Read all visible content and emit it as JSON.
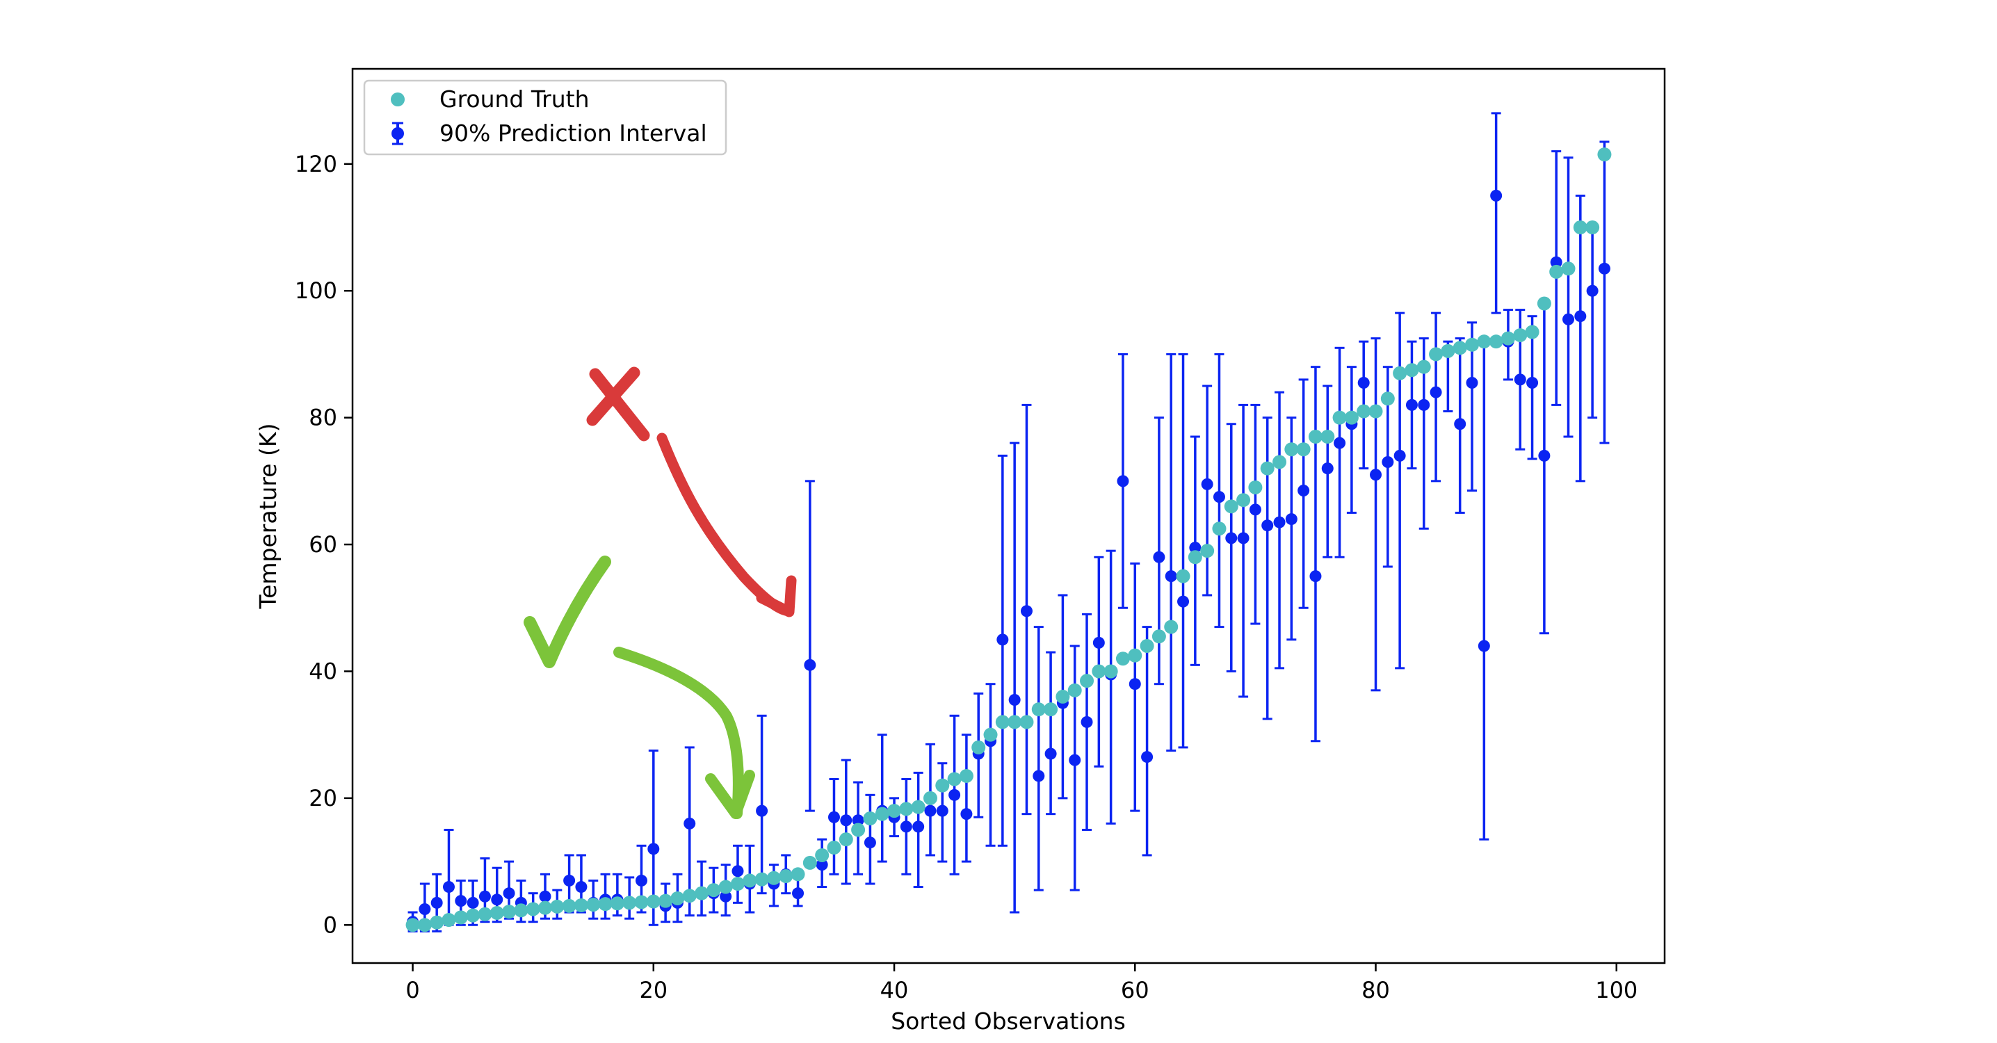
{
  "chart_data": {
    "type": "scatter",
    "title": "",
    "xlabel": "Sorted Observations",
    "ylabel": "Temperature (K)",
    "xlim": [
      -5,
      104
    ],
    "ylim": [
      -6,
      135
    ],
    "xticks": [
      0,
      20,
      40,
      60,
      80,
      100
    ],
    "yticks": [
      0,
      20,
      40,
      60,
      80,
      100,
      120
    ],
    "grid": false,
    "legend_position": "top-left",
    "series": [
      {
        "name": "Ground Truth",
        "kind": "points",
        "color": "#4fbfbf",
        "x": [
          0,
          1,
          2,
          3,
          4,
          5,
          6,
          7,
          8,
          9,
          10,
          11,
          12,
          13,
          14,
          15,
          16,
          17,
          18,
          19,
          20,
          21,
          22,
          23,
          24,
          25,
          26,
          27,
          28,
          29,
          30,
          31,
          32,
          33,
          34,
          35,
          36,
          37,
          38,
          39,
          40,
          41,
          42,
          43,
          44,
          45,
          46,
          47,
          48,
          49,
          50,
          51,
          52,
          53,
          54,
          55,
          56,
          57,
          58,
          59,
          60,
          61,
          62,
          63,
          64,
          65,
          66,
          67,
          68,
          69,
          70,
          71,
          72,
          73,
          74,
          75,
          76,
          77,
          78,
          79,
          80,
          81,
          82,
          83,
          84,
          85,
          86,
          87,
          88,
          89,
          90,
          91,
          92,
          93,
          94,
          95,
          96,
          97,
          98,
          99
        ],
        "y": [
          0,
          0,
          0.4,
          0.8,
          1.2,
          1.5,
          1.7,
          1.9,
          2.1,
          2.3,
          2.5,
          2.7,
          2.9,
          3.0,
          3.1,
          3.2,
          3.3,
          3.4,
          3.5,
          3.6,
          3.7,
          3.8,
          4.2,
          4.6,
          5.0,
          5.5,
          6.0,
          6.5,
          7.0,
          7.2,
          7.4,
          7.7,
          8.0,
          9.8,
          11.0,
          12.2,
          13.5,
          15.0,
          16.8,
          17.5,
          18.0,
          18.3,
          18.6,
          20.0,
          22.0,
          23.0,
          23.5,
          28.0,
          30.0,
          32.0,
          32.0,
          32.0,
          34.0,
          34.0,
          36.0,
          37.0,
          38.5,
          40.0,
          40.0,
          42.0,
          42.5,
          44.0,
          45.5,
          47.0,
          55.0,
          58.0,
          59.0,
          62.5,
          66.0,
          67.0,
          69.0,
          72.0,
          73.0,
          75.0,
          75.0,
          77.0,
          77.0,
          80.0,
          80.0,
          81.0,
          81.0,
          83.0,
          87.0,
          87.5,
          88.0,
          90.0,
          90.5,
          91.0,
          91.5,
          92.0,
          92.0,
          92.5,
          93.0,
          93.5,
          98.0,
          103.0,
          103.5,
          110.0,
          110.0,
          121.5
        ]
      },
      {
        "name": "90% Prediction Interval",
        "kind": "errorbar",
        "color": "#0b24f2",
        "x": [
          0,
          1,
          2,
          3,
          4,
          5,
          6,
          7,
          8,
          9,
          10,
          11,
          12,
          13,
          14,
          15,
          16,
          17,
          18,
          19,
          20,
          21,
          22,
          23,
          24,
          25,
          26,
          27,
          28,
          29,
          30,
          31,
          32,
          33,
          34,
          35,
          36,
          37,
          38,
          39,
          40,
          41,
          42,
          43,
          44,
          45,
          46,
          47,
          48,
          49,
          50,
          51,
          52,
          53,
          54,
          55,
          56,
          57,
          58,
          59,
          60,
          61,
          62,
          63,
          64,
          65,
          66,
          67,
          68,
          69,
          70,
          71,
          72,
          73,
          74,
          75,
          76,
          77,
          78,
          79,
          80,
          81,
          82,
          83,
          84,
          85,
          86,
          87,
          88,
          89,
          90,
          91,
          92,
          93,
          94,
          95,
          96,
          97,
          98,
          99
        ],
        "y": [
          0.5,
          2.5,
          3.5,
          6.0,
          3.8,
          3.5,
          4.5,
          4.0,
          5.0,
          3.5,
          2.5,
          4.5,
          3.0,
          7.0,
          6.0,
          3.5,
          4.0,
          4.0,
          3.5,
          7.0,
          12.0,
          3.0,
          3.5,
          16.0,
          5.0,
          5.0,
          4.5,
          8.5,
          6.5,
          18.0,
          6.5,
          8.0,
          5.0,
          41.0,
          9.5,
          17.0,
          16.5,
          16.5,
          13.0,
          18.0,
          17.0,
          15.5,
          15.5,
          18.0,
          18.0,
          20.5,
          17.5,
          27.0,
          29.0,
          45.0,
          35.5,
          49.5,
          23.5,
          27.0,
          35.0,
          26.0,
          32.0,
          44.5,
          39.5,
          70.0,
          38.0,
          26.5,
          58.0,
          55.0,
          51.0,
          59.5,
          69.5,
          67.5,
          61.0,
          61.0,
          65.5,
          63.0,
          63.5,
          64.0,
          68.5,
          55.0,
          72.0,
          76.0,
          79.0,
          85.5,
          71.0,
          73.0,
          74.0,
          82.0,
          82.0,
          84.0,
          90.5,
          79.0,
          85.5,
          44.0,
          115.0,
          92.0,
          86.0,
          85.5,
          74.0,
          104.5,
          95.5,
          96.0,
          100.0,
          103.5
        ],
        "lower": [
          -1.0,
          -1.0,
          -1.0,
          0.0,
          0.0,
          0.0,
          0.5,
          0.5,
          1.0,
          0.5,
          0.5,
          1.0,
          1.0,
          2.0,
          2.0,
          1.0,
          1.0,
          1.5,
          1.0,
          2.0,
          0.0,
          0.5,
          0.5,
          1.5,
          1.5,
          2.0,
          1.5,
          3.5,
          2.0,
          5.0,
          3.0,
          5.0,
          3.0,
          18.0,
          6.0,
          8.0,
          6.5,
          8.0,
          6.5,
          10.0,
          14.0,
          8.0,
          6.0,
          11.0,
          10.0,
          8.0,
          10.0,
          17.0,
          12.5,
          12.5,
          2.0,
          17.5,
          5.5,
          17.5,
          20.0,
          5.5,
          15.0,
          25.0,
          16.0,
          50.0,
          18.0,
          11.0,
          38.0,
          27.5,
          28.0,
          41.0,
          52.0,
          47.0,
          40.0,
          36.0,
          47.5,
          32.5,
          40.5,
          45.0,
          50.0,
          29.0,
          58.0,
          58.0,
          65.0,
          72.0,
          37.0,
          56.5,
          40.5,
          72.0,
          62.5,
          70.0,
          81.0,
          65.0,
          68.5,
          13.5,
          96.5,
          86.0,
          75.0,
          73.5,
          46.0,
          82.0,
          77.0,
          70.0,
          80.0,
          76.0
        ],
        "upper": [
          2.0,
          6.5,
          8.0,
          15.0,
          7.0,
          7.0,
          10.5,
          9.0,
          10.0,
          7.0,
          5.0,
          8.0,
          5.5,
          11.0,
          11.0,
          7.0,
          8.0,
          8.0,
          7.5,
          12.5,
          27.5,
          6.5,
          8.0,
          28.0,
          10.0,
          9.0,
          9.5,
          12.5,
          12.5,
          33.0,
          9.5,
          11.0,
          7.5,
          70.0,
          13.5,
          23.0,
          26.0,
          22.5,
          20.5,
          30.0,
          20.0,
          23.0,
          24.0,
          28.5,
          25.5,
          33.0,
          30.0,
          36.5,
          38.0,
          74.0,
          76.0,
          82.0,
          47.0,
          43.0,
          52.0,
          44.0,
          49.0,
          58.0,
          59.0,
          90.0,
          57.0,
          47.0,
          80.0,
          90.0,
          90.0,
          77.0,
          85.0,
          90.0,
          79.0,
          82.0,
          82.0,
          80.0,
          84.0,
          80.0,
          86.0,
          88.0,
          85.0,
          91.0,
          88.0,
          92.0,
          92.5,
          88.0,
          96.5,
          92.0,
          92.5,
          96.5,
          92.0,
          92.5,
          95.0,
          92.5,
          128.0,
          97.0,
          97.0,
          96.0,
          98.0,
          122.0,
          121.0,
          115.0,
          110.0,
          123.5
        ]
      }
    ],
    "annotations": [
      {
        "name": "red-cross-arrow",
        "color": "#d93a3a",
        "meaning": "points to an interval that misses the ground truth (observation 33)"
      },
      {
        "name": "green-check-arrow",
        "color": "#7cc43a",
        "meaning": "points to intervals that contain the ground truth (observations around 27)"
      }
    ]
  }
}
